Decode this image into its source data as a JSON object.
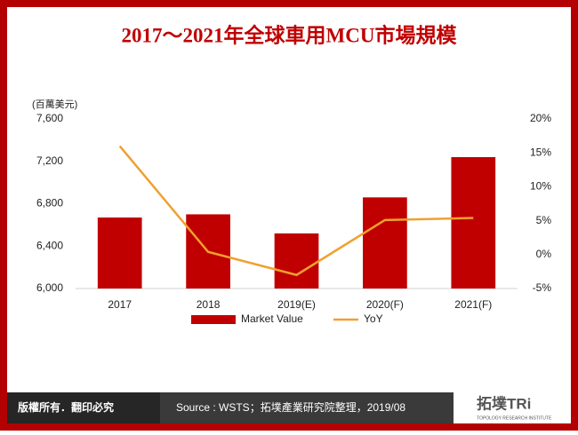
{
  "chart_data": {
    "type": "bar-line",
    "title": "2017～2021年全球車用MCU市場規模",
    "y_label": "(百萬美元)",
    "categories": [
      "2017",
      "2018",
      "2019(E)",
      "2020(F)",
      "2021(F)"
    ],
    "series": [
      {
        "name": "Market Value",
        "type": "bar",
        "color": "#c00000",
        "values": [
          6670,
          6700,
          6520,
          6860,
          7240
        ]
      },
      {
        "name": "YoY",
        "type": "line",
        "color": "#f0a030",
        "axis": "y2",
        "values": [
          16,
          0.4,
          -3,
          5.1,
          5.4
        ]
      }
    ],
    "ylim": [
      6000,
      7600
    ],
    "yticks": [
      {
        "value": 6000,
        "label": "6,000"
      },
      {
        "value": 6400,
        "label": "6,400"
      },
      {
        "value": 6800,
        "label": "6,800"
      },
      {
        "value": 7200,
        "label": "7,200"
      },
      {
        "value": 7600,
        "label": "7,600"
      }
    ],
    "y2lim": [
      -5,
      20
    ],
    "y2ticks": [
      {
        "value": -5,
        "label": "-5%"
      },
      {
        "value": 0,
        "label": "0%"
      },
      {
        "value": 5,
        "label": "5%"
      },
      {
        "value": 10,
        "label": "10%"
      },
      {
        "value": 15,
        "label": "15%"
      },
      {
        "value": 20,
        "label": "20%"
      }
    ],
    "legend": "bottom"
  },
  "footer": {
    "rights": "版權所有．翻印必究",
    "source": "Source : WSTS；拓墣產業研究院整理，2019/08",
    "logo": "拓墣TRi",
    "logo_sub": "TOPOLOGY RESEARCH INSTITUTE"
  }
}
